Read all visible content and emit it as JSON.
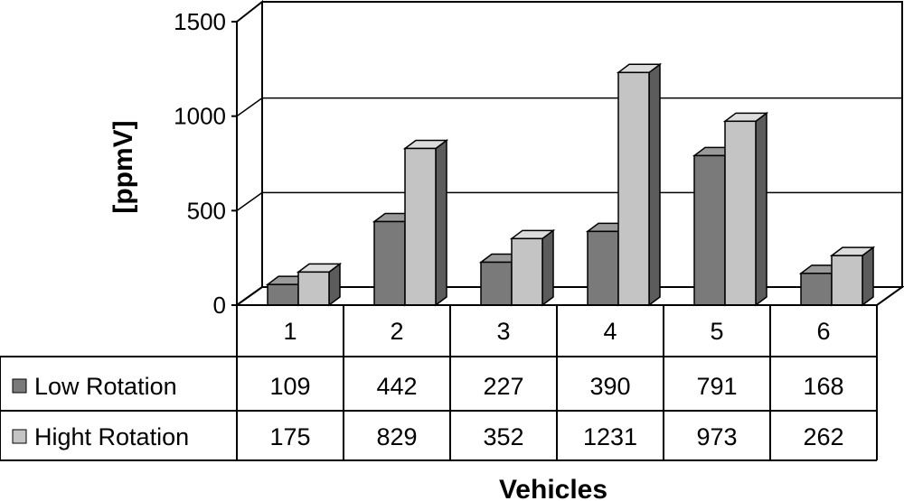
{
  "chart_data": {
    "type": "bar",
    "title": "",
    "xlabel": "Vehicles",
    "ylabel": "[ppmV]",
    "ylim": [
      0,
      1500
    ],
    "yticks": [
      0,
      500,
      1000,
      1500
    ],
    "grid": true,
    "legend": "left of data table",
    "categories": [
      "1",
      "2",
      "3",
      "4",
      "5",
      "6"
    ],
    "series": [
      {
        "name": "Low Rotation",
        "values": [
          109,
          442,
          227,
          390,
          791,
          168
        ],
        "color": "#7a7a7a"
      },
      {
        "name": "Hight Rotation",
        "values": [
          175,
          829,
          352,
          1231,
          973,
          262
        ],
        "color": "#c4c4c4"
      }
    ],
    "data_table": [
      [
        "109",
        "442",
        "227",
        "390",
        "791",
        "168"
      ],
      [
        "175",
        "829",
        "352",
        "1231",
        "973",
        "262"
      ]
    ]
  }
}
